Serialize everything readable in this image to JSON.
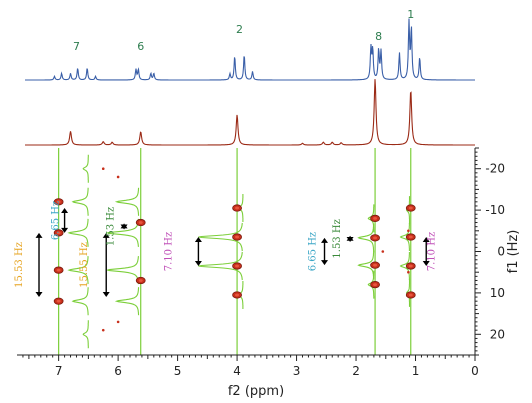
{
  "chart_data": {
    "type": "line",
    "title": "",
    "xlabel": "f2 (ppm)",
    "ylabel": "f1 (Hz)",
    "xlim": [
      7.7,
      0
    ],
    "ylim": [
      25,
      -25
    ],
    "x_ticks": [
      "7",
      "6",
      "5",
      "4",
      "3",
      "2",
      "1",
      "0"
    ],
    "y_ticks": [
      "-20",
      "-10",
      "0",
      "10",
      "20"
    ],
    "colors": {
      "proton_1d": "#3a5fa8",
      "pure_shift_1d": "#9b2a16",
      "f1_slice": "#7ccf3a",
      "cross_peak": "#c8301c",
      "arrow": "#000000"
    },
    "series": [
      {
        "key": "proton_1d",
        "peaks": [
          {
            "x": 7.07,
            "h": 0.12
          },
          {
            "x": 6.95,
            "h": 0.22
          },
          {
            "x": 6.8,
            "h": 0.22
          },
          {
            "x": 6.68,
            "h": 0.4
          },
          {
            "x": 6.52,
            "h": 0.4
          },
          {
            "x": 6.38,
            "h": 0.12
          },
          {
            "x": 5.7,
            "h": 0.35
          },
          {
            "x": 5.66,
            "h": 0.35
          },
          {
            "x": 5.45,
            "h": 0.22
          },
          {
            "x": 5.4,
            "h": 0.22
          },
          {
            "x": 4.12,
            "h": 0.2
          },
          {
            "x": 4.04,
            "h": 0.8
          },
          {
            "x": 3.88,
            "h": 0.85
          },
          {
            "x": 3.74,
            "h": 0.28
          },
          {
            "x": 1.75,
            "h": 1.05
          },
          {
            "x": 1.72,
            "h": 1.0
          },
          {
            "x": 1.62,
            "h": 1.0
          },
          {
            "x": 1.58,
            "h": 0.95
          },
          {
            "x": 1.27,
            "h": 0.9
          },
          {
            "x": 1.11,
            "h": 1.9
          },
          {
            "x": 1.07,
            "h": 1.7
          },
          {
            "x": 0.93,
            "h": 0.75
          }
        ]
      },
      {
        "key": "pure_shift_1d",
        "peaks": [
          {
            "x": 6.8,
            "h": 0.25
          },
          {
            "x": 6.25,
            "h": 0.06
          },
          {
            "x": 6.1,
            "h": 0.05
          },
          {
            "x": 5.62,
            "h": 0.24
          },
          {
            "x": 4.0,
            "h": 0.55
          },
          {
            "x": 2.9,
            "h": 0.03
          },
          {
            "x": 2.55,
            "h": 0.05
          },
          {
            "x": 2.4,
            "h": 0.05
          },
          {
            "x": 2.25,
            "h": 0.04
          },
          {
            "x": 1.68,
            "h": 1.2
          },
          {
            "x": 1.08,
            "h": 1.0
          }
        ]
      }
    ],
    "f1_slices": [
      {
        "x": 7.0,
        "lines": [
          -12,
          -4.5,
          4.5,
          12
        ]
      },
      {
        "x": 5.62,
        "lines": [
          -15,
          -12,
          -4.5,
          4.5,
          12,
          15
        ]
      },
      {
        "x": 4.0,
        "lines": [
          -3.5,
          3.5
        ]
      },
      {
        "x": 1.68,
        "lines": [
          -8,
          -3.3,
          3.3,
          8
        ]
      },
      {
        "x": 1.08,
        "lines": [
          -3.5,
          3.5
        ]
      }
    ],
    "f1_peak_lines": [
      {
        "x0": 7.15,
        "x1": 6.5,
        "y": -12,
        "h": 12
      },
      {
        "x0": 7.15,
        "x1": 6.5,
        "y": -4.5,
        "h": 15
      },
      {
        "x0": 7.15,
        "x1": 6.5,
        "y": 4.5,
        "h": 15
      },
      {
        "x0": 7.15,
        "x1": 6.5,
        "y": 12,
        "h": 12
      },
      {
        "x0": 7.15,
        "x1": 6.5,
        "y": 20,
        "h": 4
      },
      {
        "x0": 7.15,
        "x1": 6.5,
        "y": -20,
        "h": 4
      },
      {
        "x0": 6.45,
        "x1": 5.65,
        "y": -12,
        "h": 14
      },
      {
        "x0": 6.45,
        "x1": 5.65,
        "y": -4.5,
        "h": 20
      },
      {
        "x0": 6.45,
        "x1": 5.65,
        "y": 4.5,
        "h": 20
      },
      {
        "x0": 6.45,
        "x1": 5.65,
        "y": 12,
        "h": 14
      },
      {
        "x0": 4.65,
        "x1": 3.9,
        "y": -3.5,
        "h": 30
      },
      {
        "x0": 4.65,
        "x1": 3.9,
        "y": 3.5,
        "h": 30
      },
      {
        "x0": 4.35,
        "x1": 3.9,
        "y": -10.5,
        "h": 6
      },
      {
        "x0": 4.35,
        "x1": 3.9,
        "y": 10.5,
        "h": 6
      },
      {
        "x0": 2.05,
        "x1": 1.7,
        "y": -3.3,
        "h": 22
      },
      {
        "x0": 2.05,
        "x1": 1.7,
        "y": 3.3,
        "h": 22
      },
      {
        "x0": 2.05,
        "x1": 1.7,
        "y": -8,
        "h": 8
      },
      {
        "x0": 2.05,
        "x1": 1.7,
        "y": 8,
        "h": 8
      },
      {
        "x0": 1.35,
        "x1": 1.1,
        "y": -3.5,
        "h": 18
      },
      {
        "x0": 1.35,
        "x1": 1.1,
        "y": 3.5,
        "h": 18
      },
      {
        "x0": 1.35,
        "x1": 1.1,
        "y": -10,
        "h": 6
      },
      {
        "x0": 1.35,
        "x1": 1.1,
        "y": 10,
        "h": 6
      }
    ],
    "cross_peaks": [
      {
        "x": 7.0,
        "y": -12
      },
      {
        "x": 7.0,
        "y": -4.5
      },
      {
        "x": 7.0,
        "y": 4.5
      },
      {
        "x": 7.0,
        "y": 12
      },
      {
        "x": 5.62,
        "y": -7
      },
      {
        "x": 5.62,
        "y": 7
      },
      {
        "x": 4.0,
        "y": -10.5
      },
      {
        "x": 4.0,
        "y": -3.5
      },
      {
        "x": 4.0,
        "y": 3.5
      },
      {
        "x": 4.0,
        "y": 10.5
      },
      {
        "x": 1.68,
        "y": -3.3
      },
      {
        "x": 1.68,
        "y": 3.3
      },
      {
        "x": 1.68,
        "y": -8
      },
      {
        "x": 1.68,
        "y": 8
      },
      {
        "x": 1.08,
        "y": -10.5
      },
      {
        "x": 1.08,
        "y": -3.5
      },
      {
        "x": 1.08,
        "y": 3.5
      },
      {
        "x": 1.08,
        "y": 10.5
      }
    ],
    "artifacts": [
      {
        "x": 6.25,
        "y": -20
      },
      {
        "x": 6.25,
        "y": 19
      },
      {
        "x": 6.0,
        "y": -18
      },
      {
        "x": 6.0,
        "y": 17
      },
      {
        "x": 1.55,
        "y": 0
      },
      {
        "x": 1.12,
        "y": -5
      },
      {
        "x": 1.12,
        "y": 5
      }
    ],
    "peak_labels": [
      {
        "text": "7",
        "x": 6.7
      },
      {
        "text": "6",
        "x": 5.62
      },
      {
        "text": "2",
        "x": 3.96
      },
      {
        "text": "8",
        "x": 1.62
      },
      {
        "text": "1",
        "x": 1.08
      }
    ],
    "couplings": [
      {
        "text": "15.53 Hz",
        "color": "#e6a31f",
        "label_x": 7.62,
        "arrow_x": 7.33,
        "y0": -4.5,
        "y1": 11.0
      },
      {
        "text": "6.65 Hz",
        "color": "#3aa6c6",
        "label_x": 7.0,
        "arrow_x": 6.9,
        "y0": -10.5,
        "y1": -4.5
      },
      {
        "text": "15.55 Hz",
        "color": "#e6a31f",
        "label_x": 6.52,
        "arrow_x": 6.2,
        "y0": -4.5,
        "y1": 11.0
      },
      {
        "text": "1.53 Hz",
        "color": "#3a8a3a",
        "label_x": 6.08,
        "arrow_x": 5.9,
        "y0": -6.8,
        "y1": -5.3
      },
      {
        "text": "7.10 Hz",
        "color": "#c050b8",
        "label_x": 5.1,
        "arrow_x": 4.65,
        "y0": -3.5,
        "y1": 3.5
      },
      {
        "text": "6.65 Hz",
        "color": "#3aa6c6",
        "label_x": 2.68,
        "arrow_x": 2.53,
        "y0": -3.3,
        "y1": 3.3
      },
      {
        "text": "1.53 Hz",
        "color": "#3a8a3a",
        "label_x": 2.27,
        "arrow_x": 2.1,
        "y0": -3.8,
        "y1": -2.3
      },
      {
        "text": "7.10 Hz",
        "color": "#c050b8",
        "label_x": 0.68,
        "arrow_x": 0.82,
        "y0": -3.5,
        "y1": 3.5
      }
    ]
  }
}
